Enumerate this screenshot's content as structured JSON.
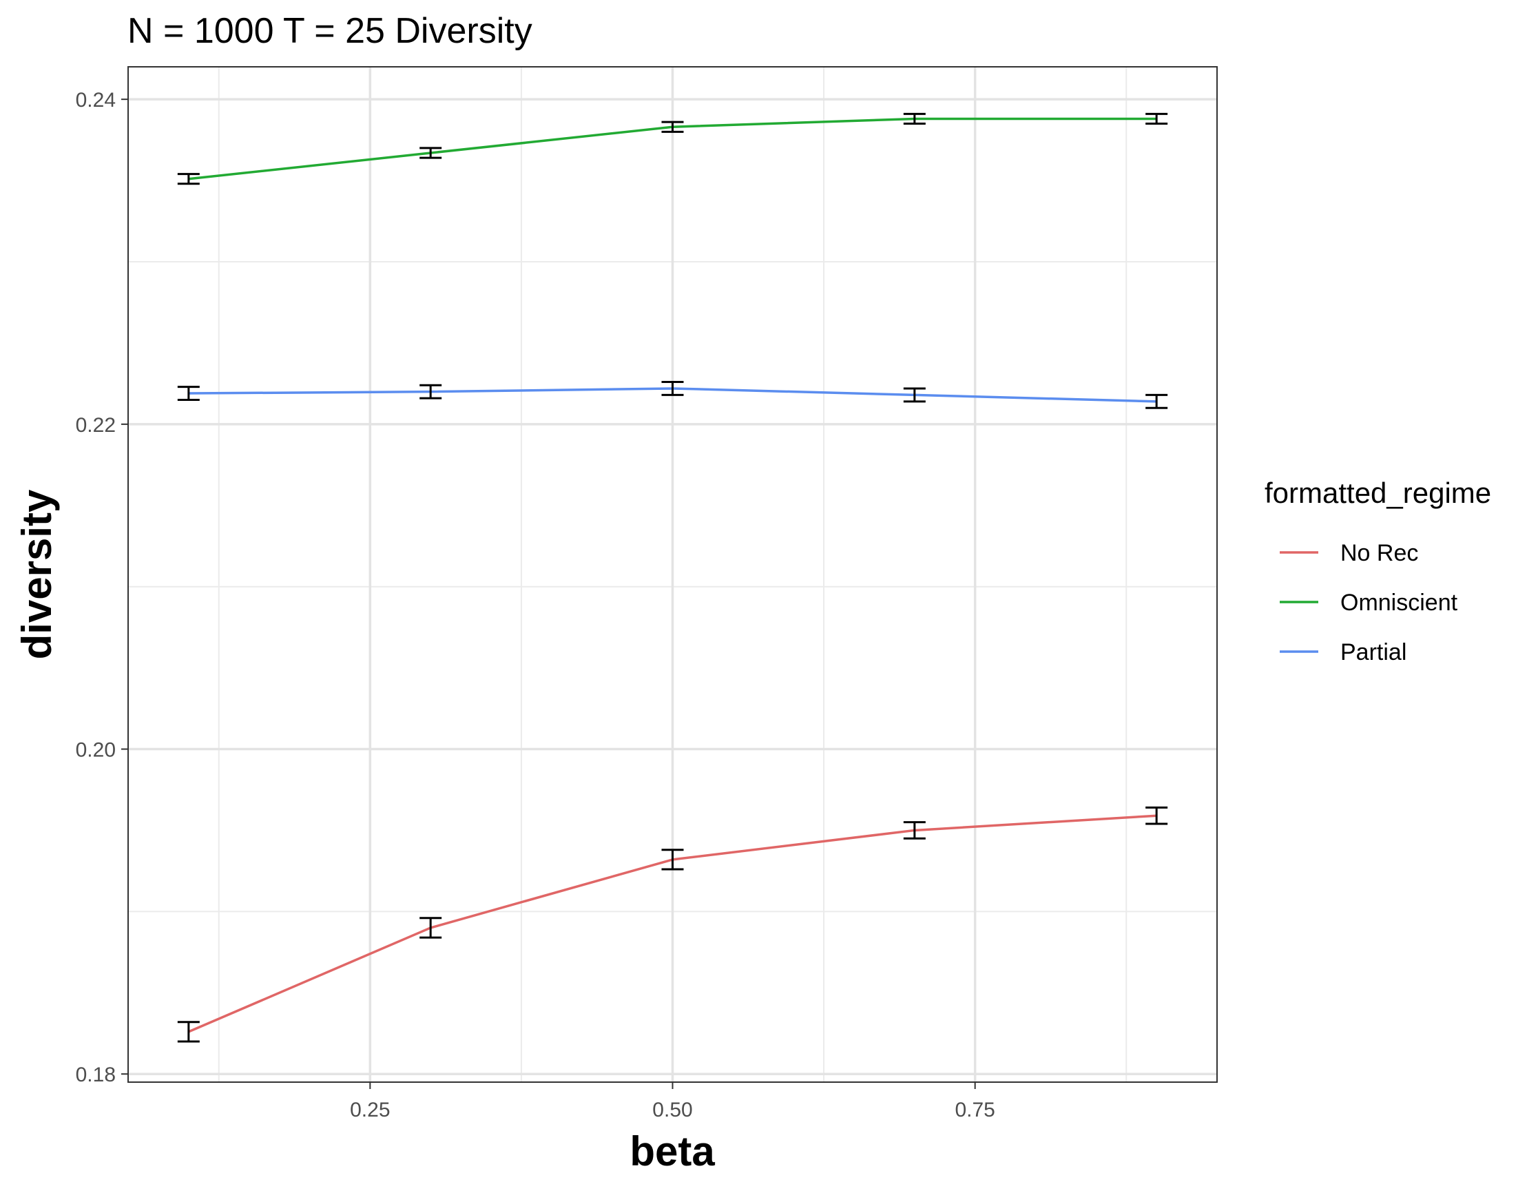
{
  "chart_data": {
    "type": "line",
    "title": "N = 1000 T = 25 Diversity",
    "xlabel": "beta",
    "ylabel": "diversity",
    "xlim": [
      0.05,
      0.95
    ],
    "ylim": [
      0.1795,
      0.242
    ],
    "x_ticks": [
      0.25,
      0.5,
      0.75
    ],
    "x_tick_labels": [
      "0.25",
      "0.50",
      "0.75"
    ],
    "y_ticks": [
      0.18,
      0.2,
      0.22,
      0.24
    ],
    "y_tick_labels": [
      "0.18",
      "0.20",
      "0.22",
      "0.24"
    ],
    "grid": true,
    "legend": {
      "title": "formatted_regime",
      "position": "right"
    },
    "x": [
      0.1,
      0.3,
      0.5,
      0.7,
      0.9
    ],
    "series": [
      {
        "name": "No Rec",
        "color": "#e06666",
        "values": [
          0.1826,
          0.189,
          0.1932,
          0.195,
          0.1959
        ],
        "err": [
          0.0006,
          0.0006,
          0.0006,
          0.0005,
          0.0005
        ]
      },
      {
        "name": "Omniscient",
        "color": "#22aa33",
        "values": [
          0.2351,
          0.2367,
          0.2383,
          0.2388,
          0.2388
        ],
        "err": [
          0.0003,
          0.0003,
          0.0003,
          0.0003,
          0.0003
        ]
      },
      {
        "name": "Partial",
        "color": "#5b8def",
        "values": [
          0.2219,
          0.222,
          0.2222,
          0.2218,
          0.2214
        ],
        "err": [
          0.0004,
          0.0004,
          0.0004,
          0.0004,
          0.0004
        ]
      }
    ]
  }
}
